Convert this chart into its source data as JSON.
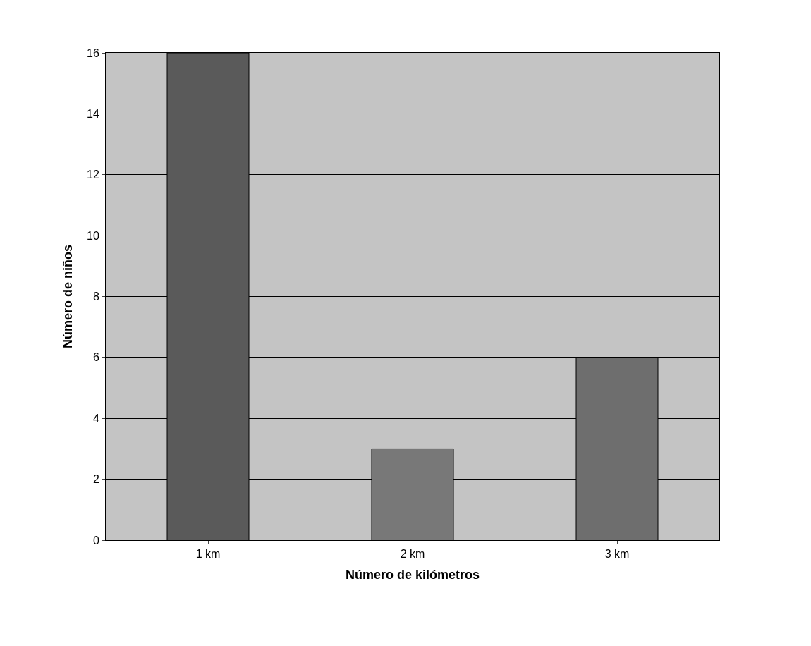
{
  "chart_data": {
    "type": "bar",
    "xlabel": "Número de kilómetros",
    "ylabel": "Número de niños",
    "categories": [
      "1 km",
      "2 km",
      "3 km"
    ],
    "values": [
      16,
      3,
      6
    ],
    "colors": [
      "#5a5a5a",
      "#787878",
      "#6e6e6e"
    ],
    "ylim": [
      0,
      16
    ],
    "yticks": [
      0,
      2,
      4,
      6,
      8,
      10,
      12,
      14,
      16
    ],
    "grid": "y",
    "legend": false
  }
}
